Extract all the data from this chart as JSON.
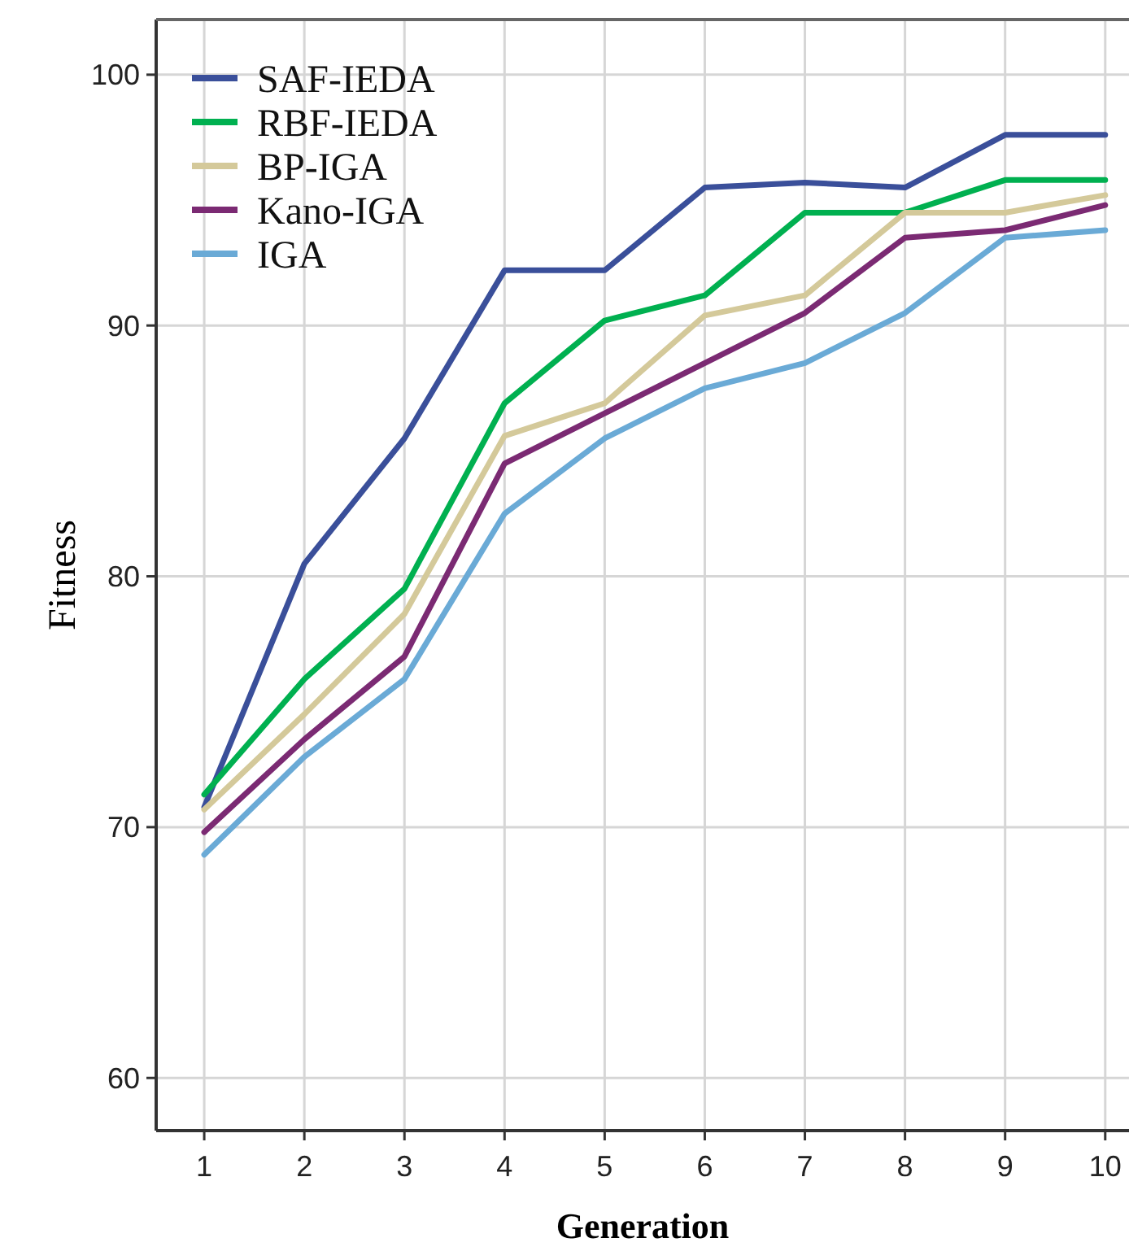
{
  "chart_data": {
    "type": "line",
    "xlabel": "Generation",
    "ylabel": "Fitness",
    "x": [
      1,
      2,
      3,
      4,
      5,
      6,
      7,
      8,
      9,
      10
    ],
    "xlim": [
      0.52,
      10.4
    ],
    "xticks": [
      1,
      2,
      3,
      4,
      5,
      6,
      7,
      8,
      9,
      10
    ],
    "ylim": [
      57.9,
      102.2
    ],
    "yticks": [
      60,
      70,
      80,
      90,
      100
    ],
    "grid": true,
    "legend": "top left",
    "marker": "none",
    "line_style": "solid",
    "series": [
      {
        "name": "SAF-IEDA",
        "color": "#3a4f9a",
        "values": [
          70.8,
          80.5,
          85.5,
          92.2,
          92.2,
          95.5,
          95.7,
          95.5,
          97.6,
          97.6
        ]
      },
      {
        "name": "RBF-IEDA",
        "color": "#00b050",
        "values": [
          71.3,
          75.9,
          79.5,
          86.9,
          90.2,
          91.2,
          94.5,
          94.5,
          95.8,
          95.8
        ]
      },
      {
        "name": "BP-IGA",
        "color": "#d4c99a",
        "values": [
          70.7,
          74.5,
          78.5,
          85.6,
          86.9,
          90.4,
          91.2,
          94.5,
          94.5,
          95.2
        ]
      },
      {
        "name": "Kano-IGA",
        "color": "#7b2a73",
        "values": [
          69.8,
          73.5,
          76.8,
          84.5,
          86.5,
          88.5,
          90.5,
          93.5,
          93.8,
          94.8
        ]
      },
      {
        "name": "IGA",
        "color": "#6aaad6",
        "values": [
          68.9,
          72.8,
          75.9,
          82.5,
          85.5,
          87.5,
          88.5,
          90.5,
          93.5,
          93.8
        ]
      }
    ]
  }
}
